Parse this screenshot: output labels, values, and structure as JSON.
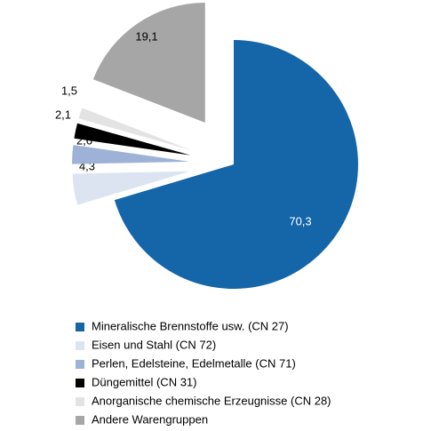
{
  "chart_data": {
    "type": "pie",
    "categories": [
      "Mineralische Brennstoffe usw. (CN 27)",
      "Eisen und Stahl (CN 72)",
      "Perlen, Edelsteine, Edelmetalle (CN 71)",
      "Düngemittel (CN 31)",
      "Anorganische chemische Erzeugnisse (CN 28)",
      "Andere Warengruppen"
    ],
    "values": [
      70.3,
      4.3,
      2.6,
      2.1,
      1.5,
      19.1
    ],
    "value_labels": [
      "70,3",
      "4,3",
      "2,6",
      "2,1",
      "1,5",
      "19,1"
    ],
    "colors": [
      "#1565a9",
      "#dde4f1",
      "#9eb2d8",
      "#000000",
      "#e3e3e3",
      "#a6a6a6"
    ]
  }
}
